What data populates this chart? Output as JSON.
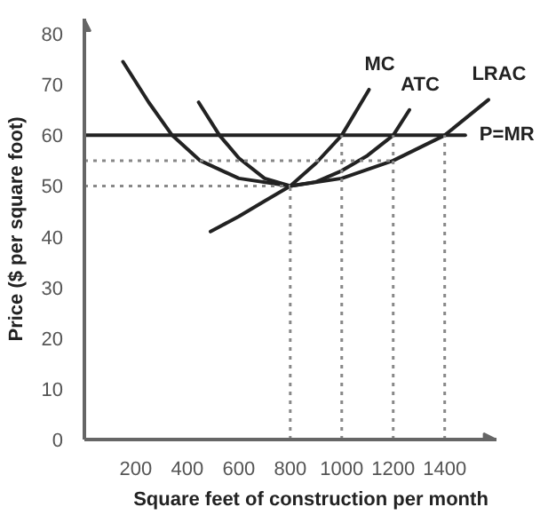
{
  "chart_data": {
    "type": "line",
    "xlabel": "Square feet of construction per month",
    "ylabel": "Price ($ per square foot)",
    "xlim": [
      0,
      1600
    ],
    "ylim": [
      0,
      83
    ],
    "xticks": [
      200,
      400,
      600,
      800,
      1000,
      1200,
      1400
    ],
    "yticks": [
      0,
      10,
      20,
      30,
      40,
      50,
      60,
      70,
      80
    ],
    "grid": false,
    "marker": "none",
    "line_style": "solid",
    "series": [
      {
        "name": "MC",
        "color": "#222222",
        "x": [
          490,
          600,
          700,
          800,
          900,
          1000,
          1106
        ],
        "values": [
          41,
          44,
          47,
          50,
          54.5,
          60,
          69
        ]
      },
      {
        "name": "ATC",
        "color": "#222222",
        "x": [
          444,
          525,
          600,
          700,
          800,
          900,
          1000,
          1100,
          1200,
          1263
        ],
        "values": [
          66.5,
          60,
          55.5,
          51.5,
          50,
          50.8,
          53,
          56,
          60,
          65
        ]
      },
      {
        "name": "LRAC",
        "color": "#222222",
        "x": [
          150,
          250,
          341,
          450,
          600,
          800,
          1000,
          1200,
          1400,
          1570
        ],
        "values": [
          74.5,
          66.5,
          60,
          55,
          51.5,
          50,
          51.5,
          55,
          60,
          67
        ]
      },
      {
        "name": "P=MR",
        "color": "#222222",
        "x": [
          0,
          1480
        ],
        "values": [
          60,
          60
        ]
      },
      {
        "color": "#888888",
        "line_style": "dotted",
        "x": [
          0,
          800
        ],
        "values": [
          50,
          50
        ]
      },
      {
        "color": "#888888",
        "line_style": "dotted",
        "x": [
          0,
          1200
        ],
        "values": [
          55,
          55
        ]
      },
      {
        "color": "#888888",
        "line_style": "dotted",
        "x": [
          800,
          800
        ],
        "values": [
          0,
          50
        ]
      },
      {
        "color": "#888888",
        "line_style": "dotted",
        "x": [
          1000,
          1000
        ],
        "values": [
          0,
          60
        ]
      },
      {
        "color": "#888888",
        "line_style": "dotted",
        "x": [
          1200,
          1200
        ],
        "values": [
          0,
          60
        ]
      },
      {
        "color": "#888888",
        "line_style": "dotted",
        "x": [
          1400,
          1400
        ],
        "values": [
          0,
          60
        ]
      }
    ]
  }
}
